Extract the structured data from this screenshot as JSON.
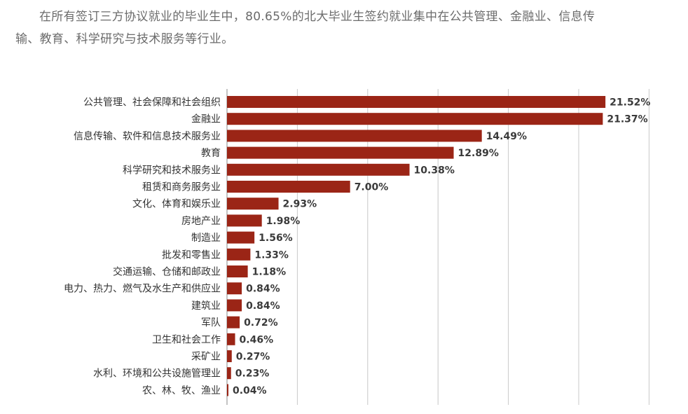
{
  "intro": {
    "line1": "在所有签订三方协议就业的毕业生中，80.65%的北大毕业生签约就业集中在公共管理、金融业、信息传",
    "line2": "输、教育、科学研究与技术服务等行业。"
  },
  "colors": {
    "bar": "#9b2516",
    "grid": "#c8c8c8",
    "axis": "#888888"
  },
  "chart_data": {
    "type": "bar",
    "orientation": "horizontal",
    "categories": [
      "公共管理、社会保障和社会组织",
      "金融业",
      "信息传输、软件和信息技术服务业",
      "教育",
      "科学研究和技术服务业",
      "租赁和商务服务业",
      "文化、体育和娱乐业",
      "房地产业",
      "制造业",
      "批发和零售业",
      "交通运输、仓储和邮政业",
      "电力、热力、燃气及水生产和供应业",
      "建筑业",
      "军队",
      "卫生和社会工作",
      "采矿业",
      "水利、环境和公共设施管理业",
      "农、林、牧、渔业"
    ],
    "values": [
      21.52,
      21.37,
      14.49,
      12.89,
      10.38,
      7.0,
      2.93,
      1.98,
      1.56,
      1.33,
      1.18,
      0.84,
      0.84,
      0.72,
      0.46,
      0.27,
      0.23,
      0.04
    ],
    "value_labels": [
      "21.52%",
      "21.37%",
      "14.49%",
      "12.89%",
      "10.38%",
      "7.00%",
      "2.93%",
      "1.98%",
      "1.56%",
      "1.33%",
      "1.18%",
      "0.84%",
      "0.84%",
      "0.72%",
      "0.46%",
      "0.27%",
      "0.23%",
      "0.04%"
    ],
    "xlim": [
      0,
      25
    ],
    "grid": true,
    "legend": false,
    "title": "",
    "xlabel": "",
    "ylabel": ""
  }
}
